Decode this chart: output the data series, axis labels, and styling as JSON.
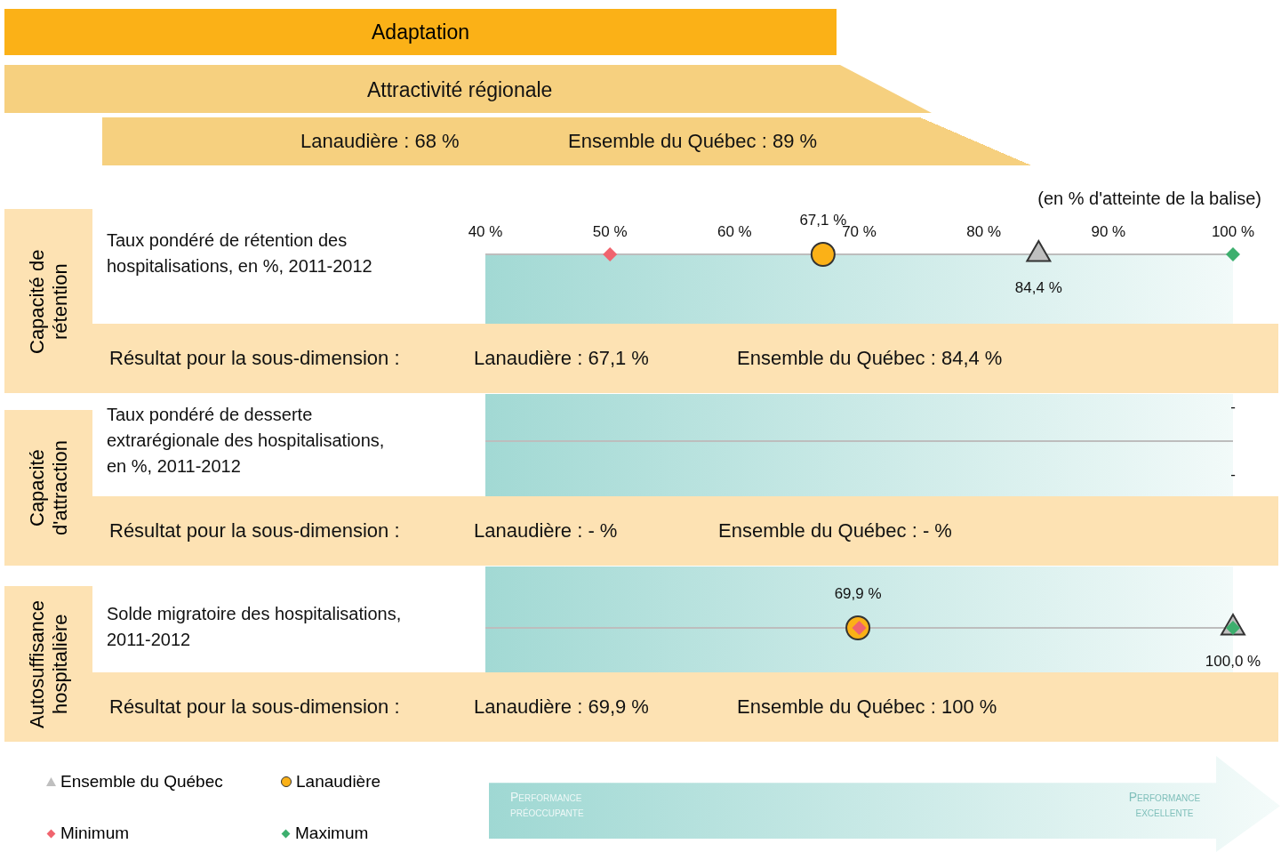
{
  "chart_data": {
    "type": "scatter",
    "orientation": "horizontal",
    "title": "Adaptation",
    "subtitle": "Attractivité régionale",
    "xlabel": "(en % d'atteinte de la balise)",
    "categories": [
      "Taux pondéré de rétention des hospitalisations, en %, 2011-2012",
      "Taux pondéré de desserte extrarégionale des hospitalisations, en %, 2011-2012",
      "Solde migratoire des hospitalisations, 2011-2012"
    ],
    "xlim": [
      40,
      100
    ],
    "xticks": [
      {
        "value": 40,
        "label": "40 %"
      },
      {
        "value": 50,
        "label": "50 %"
      },
      {
        "value": 60,
        "label": "60 %"
      },
      {
        "value": 70,
        "label": "70 %"
      },
      {
        "value": 80,
        "label": "80 %"
      },
      {
        "value": 90,
        "label": "90 %"
      },
      {
        "value": 100,
        "label": "100 %"
      }
    ],
    "grid": "y",
    "legend": "bottom left",
    "series": [
      {
        "name": "Ensemble du Québec",
        "color": "#bfbfbf",
        "marker": "triangle",
        "values": [
          84.4,
          null,
          100
        ],
        "value_labels": [
          "84,4 %",
          "-",
          "100,0 %"
        ]
      },
      {
        "name": "Lanaudière",
        "color": "#fbb117",
        "marker": "circle",
        "values": [
          67.1,
          null,
          69.9
        ],
        "value_labels": [
          "67,1 %",
          "-",
          "69,9 %"
        ]
      },
      {
        "name": "Minimum",
        "color": "#f0646e",
        "marker": "diamond",
        "values": [
          50,
          null,
          70
        ]
      },
      {
        "name": "Maximum",
        "color": "#3daf6e",
        "marker": "diamond",
        "values": [
          100,
          null,
          100
        ]
      }
    ],
    "annotations": [
      "Lanaudière : 68 %",
      "Ensemble du Québec : 89 %",
      "Capacité de rétention",
      "Résultat pour la sous-dimension :",
      "Lanaudière : 67,1 %",
      "Ensemble du Québec : 84,4 %",
      "Capacité d'attraction",
      "Résultat pour la sous-dimension :",
      "Lanaudière : - %",
      "Ensemble du Québec : - %",
      "Autosuffisance hospitalière",
      "Résultat pour la sous-dimension :",
      "Lanaudière : 69,9 %",
      "Ensemble du Québec : 100 %",
      "Performance préoccupante",
      "Performance excellente"
    ]
  }
}
